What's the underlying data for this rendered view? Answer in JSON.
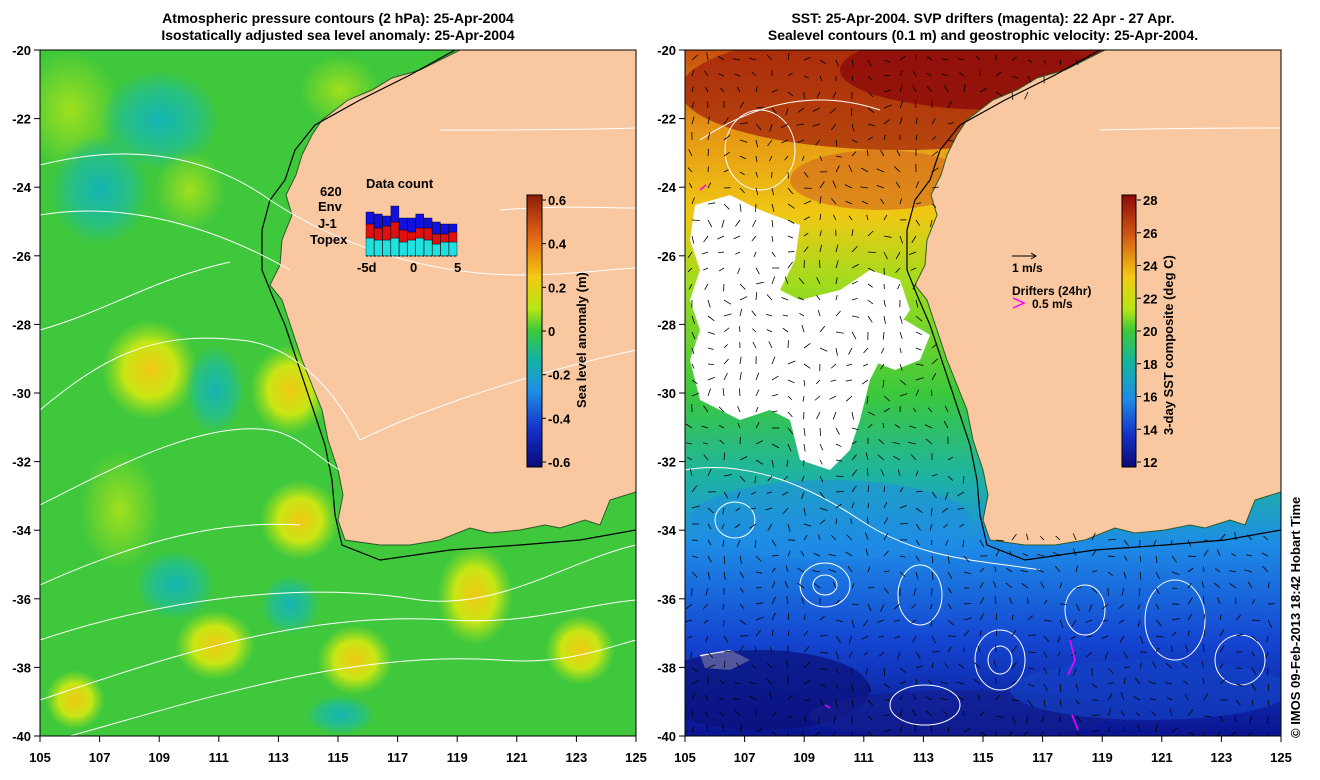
{
  "left_panel": {
    "title_line1": "Atmospheric pressure contours (2 hPa): 25-Apr-2004",
    "title_line2": "Isostatically adjusted sea level anomaly: 25-Apr-2004",
    "colorbar": {
      "label": "Sea level anomaly (m)",
      "ticks": [
        "0.6",
        "0.4",
        "0.2",
        "0",
        "-0.2",
        "-0.4",
        "-0.6"
      ]
    },
    "inset": {
      "title": "Data count",
      "count": "620",
      "legend": [
        {
          "label": "Env",
          "color": "#1010e0"
        },
        {
          "label": "J-1",
          "color": "#e01010"
        },
        {
          "label": "Topex",
          "color": "#20e0e0"
        }
      ],
      "x_ticks": [
        "-5d",
        "0",
        "5"
      ]
    }
  },
  "right_panel": {
    "title_line1": "SST: 25-Apr-2004. SVP drifters (magenta): 22 Apr - 27 Apr.",
    "title_line2": "Sealevel contours (0.1 m) and geostrophic velocity: 25-Apr-2004.",
    "colorbar": {
      "label": "3-day SST composite (deg C)",
      "ticks": [
        "28",
        "26",
        "24",
        "22",
        "20",
        "18",
        "16",
        "14",
        "12"
      ]
    },
    "vector_key": {
      "label": "1 m/s"
    },
    "drifter_key": {
      "title": "Drifters (24hr)",
      "label": "0.5 m/s",
      "color": "#ff00ff"
    }
  },
  "axes": {
    "y_ticks": [
      "-20",
      "-22",
      "-24",
      "-26",
      "-28",
      "-30",
      "-32",
      "-34",
      "-36",
      "-38",
      "-40"
    ],
    "x_ticks": [
      "105",
      "107",
      "109",
      "111",
      "113",
      "115",
      "117",
      "119",
      "121",
      "123",
      "125"
    ]
  },
  "colors": {
    "land": "#fac8a0",
    "ocean_green": "#3cc83c",
    "sst_warm": "#c86414",
    "sst_cold": "#1428b4"
  },
  "credit": "© IMOS 09-Feb-2013 18:42 Hobart Time"
}
